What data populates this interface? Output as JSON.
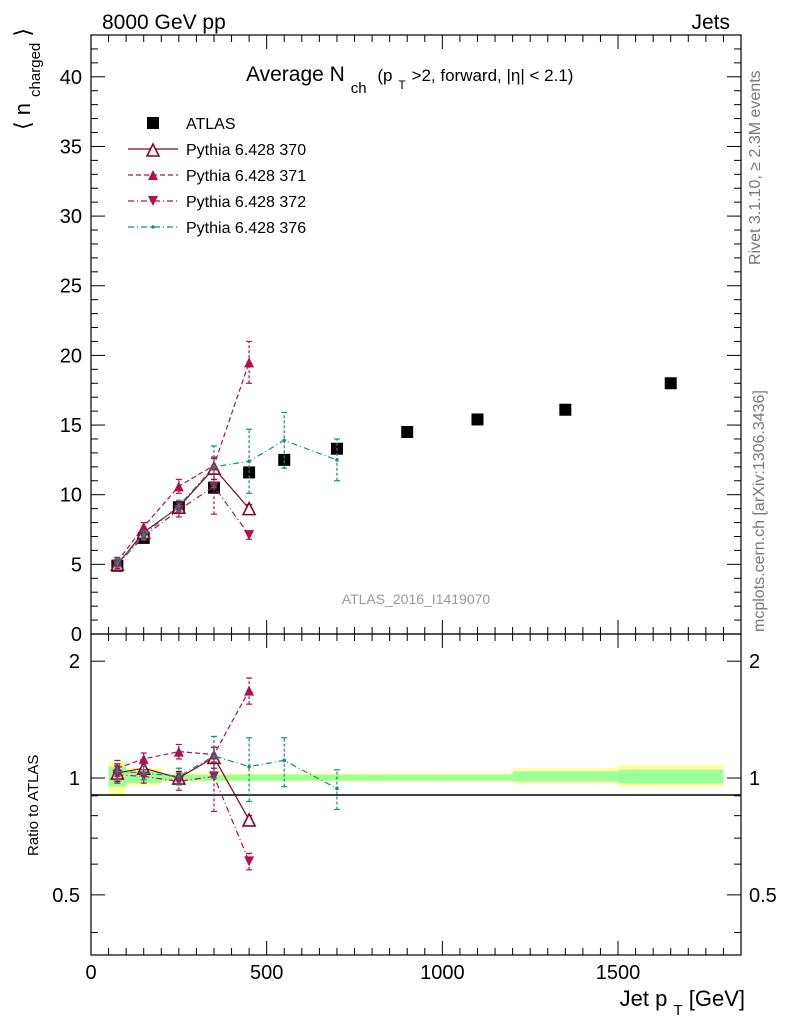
{
  "header": {
    "left": "8000 GeV pp",
    "right": "Jets"
  },
  "side_labels": {
    "rivet": "Rivet 3.1.10, ≥ 2.3M events",
    "mcplots": "mcplots.cern.ch [arXiv:1306.3436]"
  },
  "watermark": "ATLAS_2016_I1419070",
  "colors": {
    "data": "#000000",
    "p370": "#8b0020",
    "p371": "#b0104f",
    "p372": "#b0104f",
    "p376": "#11907b",
    "band_yellow": "#ffff99",
    "band_green": "#99ff99"
  },
  "chart_data": [
    {
      "type": "scatter",
      "panel": "main",
      "title": {
        "main": "Average N",
        "main_sub": "ch",
        "paren_1": "(p",
        "paren_sub": "T",
        "paren_2": ">2, forward, |η| < 2.1)"
      },
      "ylabel": {
        "left": "⟨ n",
        "sub": "charged",
        "right": "⟩"
      },
      "xlim": [
        0,
        1850
      ],
      "ylim": [
        0,
        43
      ],
      "y_ticks": [
        {
          "value": 0,
          "label": "0"
        },
        {
          "value": 5,
          "label": "5"
        },
        {
          "value": 10,
          "label": "10"
        },
        {
          "value": 15,
          "label": "15"
        },
        {
          "value": 20,
          "label": "20"
        },
        {
          "value": 25,
          "label": "25"
        },
        {
          "value": 30,
          "label": "30"
        },
        {
          "value": 35,
          "label": "35"
        },
        {
          "value": 40,
          "label": "40"
        }
      ],
      "series": [
        {
          "key": "atlas",
          "name": "ATLAS",
          "style": "data",
          "x": [
            75,
            150,
            250,
            350,
            450,
            550,
            700,
            900,
            1100,
            1350,
            1650
          ],
          "y": [
            4.9,
            6.9,
            9.1,
            10.5,
            11.6,
            12.5,
            13.3,
            14.5,
            15.4,
            16.1,
            18.0
          ],
          "yerr": [
            0.2,
            0.2,
            0.2,
            0.3,
            0.3,
            0.4,
            0.3,
            0.2,
            0.2,
            0.2,
            0.2
          ]
        },
        {
          "key": "p370",
          "name": "Pythia 6.428 370",
          "style": "solid-open-triangle",
          "x": [
            75,
            150,
            250,
            350,
            450
          ],
          "y": [
            5.0,
            7.3,
            9.1,
            11.9,
            9.0
          ],
          "yerr": [
            0.3,
            0.3,
            0.4,
            0.8,
            0.3
          ]
        },
        {
          "key": "p371",
          "name": "Pythia 6.428 371",
          "style": "dashed-triangle-up",
          "x": [
            75,
            150,
            250,
            350,
            450
          ],
          "y": [
            5.2,
            7.7,
            10.6,
            12.1,
            19.5
          ],
          "yerr": [
            0.3,
            0.3,
            0.5,
            0.6,
            1.5
          ]
        },
        {
          "key": "p372",
          "name": "Pythia 6.428 372",
          "style": "dashdot-triangle-down",
          "x": [
            75,
            150,
            250,
            350,
            450
          ],
          "y": [
            5.0,
            7.0,
            8.9,
            10.6,
            7.1
          ],
          "yerr": [
            0.3,
            0.3,
            0.5,
            2.0,
            0.3
          ]
        },
        {
          "key": "p376",
          "name": "Pythia 6.428 376",
          "style": "dashdot-dot",
          "x": [
            75,
            150,
            250,
            350,
            450,
            550,
            700
          ],
          "y": [
            5.1,
            7.1,
            9.2,
            12.0,
            12.4,
            13.9,
            12.5
          ],
          "yerr": [
            0.3,
            0.3,
            0.4,
            1.5,
            2.3,
            2.0,
            1.5
          ]
        }
      ]
    },
    {
      "type": "scatter",
      "panel": "ratio",
      "ylabel": "Ratio to ATLAS",
      "xlabel": {
        "main": "Jet p",
        "sub": "T",
        "unit": " [GeV]"
      },
      "xlim": [
        0,
        1850
      ],
      "ylim": [
        0.35,
        2.35
      ],
      "x_ticks": [
        {
          "value": 0,
          "label": "0"
        },
        {
          "value": 500,
          "label": "500"
        },
        {
          "value": 1000,
          "label": "1000"
        },
        {
          "value": 1500,
          "label": "1500"
        }
      ],
      "y_ticks": [
        {
          "value": 0.5,
          "label": "0.5"
        },
        {
          "value": 1,
          "label": "1"
        },
        {
          "value": 2,
          "label": "2"
        }
      ],
      "bands": [
        {
          "x0": 50,
          "x1": 100,
          "yellow": [
            0.9,
            1.1
          ],
          "green": [
            0.95,
            1.07
          ]
        },
        {
          "x0": 100,
          "x1": 200,
          "yellow": [
            0.96,
            1.06
          ],
          "green": [
            0.97,
            1.04
          ]
        },
        {
          "x0": 200,
          "x1": 300,
          "yellow": [
            0.98,
            1.03
          ],
          "green": [
            0.985,
            1.02
          ]
        },
        {
          "x0": 300,
          "x1": 400,
          "yellow": [
            0.98,
            1.03
          ],
          "green": [
            0.985,
            1.02
          ]
        },
        {
          "x0": 400,
          "x1": 500,
          "yellow": [
            0.98,
            1.03
          ],
          "green": [
            0.985,
            1.02
          ]
        },
        {
          "x0": 500,
          "x1": 600,
          "yellow": [
            0.98,
            1.03
          ],
          "green": [
            0.985,
            1.02
          ]
        },
        {
          "x0": 600,
          "x1": 800,
          "yellow": [
            0.98,
            1.03
          ],
          "green": [
            0.985,
            1.02
          ]
        },
        {
          "x0": 800,
          "x1": 1000,
          "yellow": [
            0.98,
            1.03
          ],
          "green": [
            0.985,
            1.02
          ]
        },
        {
          "x0": 1000,
          "x1": 1200,
          "yellow": [
            0.98,
            1.03
          ],
          "green": [
            0.985,
            1.02
          ]
        },
        {
          "x0": 1200,
          "x1": 1500,
          "yellow": [
            0.97,
            1.06
          ],
          "green": [
            0.98,
            1.04
          ]
        },
        {
          "x0": 1500,
          "x1": 1800,
          "yellow": [
            0.95,
            1.08
          ],
          "green": [
            0.97,
            1.05
          ]
        }
      ],
      "series": [
        {
          "key": "p370",
          "style": "solid-open-triangle",
          "x": [
            75,
            150,
            250,
            350,
            450
          ],
          "y": [
            1.03,
            1.06,
            1.0,
            1.13,
            0.78
          ],
          "yerr": [
            0.05,
            0.04,
            0.04,
            0.07,
            0.02
          ]
        },
        {
          "key": "p371",
          "style": "dashed-triangle-up",
          "x": [
            75,
            150,
            250,
            350,
            450
          ],
          "y": [
            1.06,
            1.12,
            1.17,
            1.15,
            1.68
          ],
          "yerr": [
            0.05,
            0.04,
            0.05,
            0.05,
            0.13
          ]
        },
        {
          "key": "p372",
          "style": "dashdot-triangle-down",
          "x": [
            75,
            150,
            250,
            350,
            450
          ],
          "y": [
            1.02,
            1.01,
            0.98,
            1.01,
            0.61
          ],
          "yerr": [
            0.05,
            0.04,
            0.05,
            0.19,
            0.03
          ]
        },
        {
          "key": "p376",
          "style": "dashdot-dot",
          "x": [
            75,
            150,
            250,
            350,
            450,
            550,
            700
          ],
          "y": [
            1.04,
            1.03,
            1.01,
            1.14,
            1.07,
            1.11,
            0.94
          ],
          "yerr": [
            0.05,
            0.04,
            0.05,
            0.14,
            0.2,
            0.16,
            0.11
          ]
        }
      ]
    }
  ]
}
